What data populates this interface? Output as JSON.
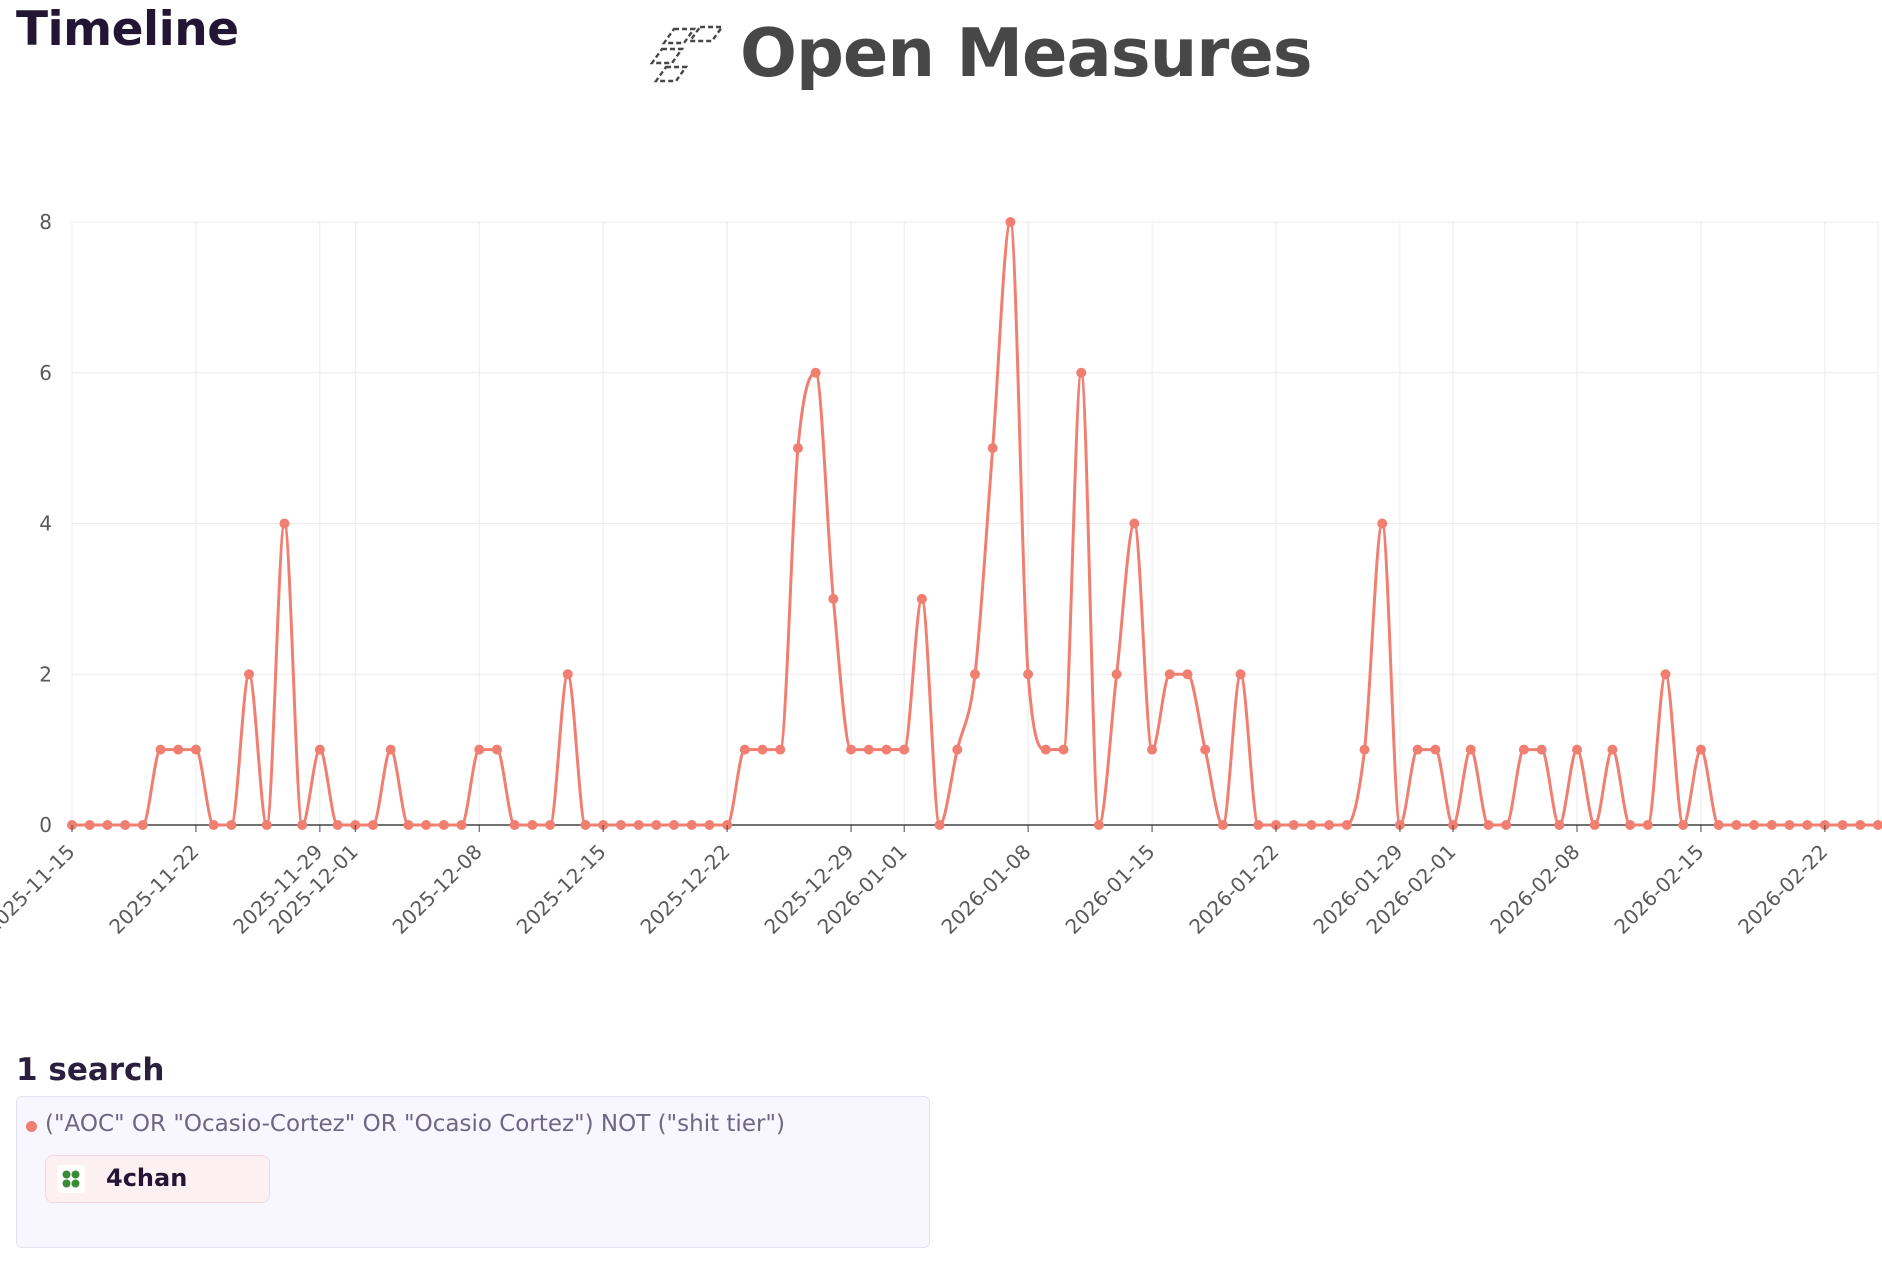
{
  "header": {
    "title": "Timeline",
    "brand_name": "Open Measures",
    "brand_icon": "open-measures-logo"
  },
  "chart_data": {
    "type": "line",
    "title": "",
    "xlabel": "",
    "ylabel": "",
    "x_start": "2025-11-15",
    "x_end": "2026-02-25",
    "x_ticks": [
      "2025-11-15",
      "2025-11-22",
      "2025-11-29",
      "2025-12-01",
      "2025-12-08",
      "2025-12-15",
      "2025-12-22",
      "2025-12-29",
      "2026-01-01",
      "2026-01-08",
      "2026-01-15",
      "2026-01-22",
      "2026-01-29",
      "2026-02-01",
      "2026-02-08",
      "2026-02-15",
      "2026-02-22"
    ],
    "y_ticks": [
      0,
      2,
      4,
      6,
      8
    ],
    "ylim": [
      0,
      8
    ],
    "grid": true,
    "legend": "none",
    "series": [
      {
        "color": "#f07f72",
        "points": [
          [
            "2025-11-15",
            0
          ],
          [
            "2025-11-16",
            0
          ],
          [
            "2025-11-17",
            0
          ],
          [
            "2025-11-18",
            0
          ],
          [
            "2025-11-19",
            0
          ],
          [
            "2025-11-20",
            1
          ],
          [
            "2025-11-21",
            1
          ],
          [
            "2025-11-22",
            1
          ],
          [
            "2025-11-23",
            0
          ],
          [
            "2025-11-24",
            0
          ],
          [
            "2025-11-25",
            2
          ],
          [
            "2025-11-26",
            0
          ],
          [
            "2025-11-27",
            4
          ],
          [
            "2025-11-28",
            0
          ],
          [
            "2025-11-29",
            1
          ],
          [
            "2025-11-30",
            0
          ],
          [
            "2025-12-01",
            0
          ],
          [
            "2025-12-02",
            0
          ],
          [
            "2025-12-03",
            1
          ],
          [
            "2025-12-04",
            0
          ],
          [
            "2025-12-05",
            0
          ],
          [
            "2025-12-06",
            0
          ],
          [
            "2025-12-07",
            0
          ],
          [
            "2025-12-08",
            1
          ],
          [
            "2025-12-09",
            1
          ],
          [
            "2025-12-10",
            0
          ],
          [
            "2025-12-11",
            0
          ],
          [
            "2025-12-12",
            0
          ],
          [
            "2025-12-13",
            2
          ],
          [
            "2025-12-14",
            0
          ],
          [
            "2025-12-15",
            0
          ],
          [
            "2025-12-16",
            0
          ],
          [
            "2025-12-17",
            0
          ],
          [
            "2025-12-18",
            0
          ],
          [
            "2025-12-19",
            0
          ],
          [
            "2025-12-20",
            0
          ],
          [
            "2025-12-21",
            0
          ],
          [
            "2025-12-22",
            0
          ],
          [
            "2025-12-23",
            1
          ],
          [
            "2025-12-24",
            1
          ],
          [
            "2025-12-25",
            1
          ],
          [
            "2025-12-26",
            5
          ],
          [
            "2025-12-27",
            6
          ],
          [
            "2025-12-28",
            3
          ],
          [
            "2025-12-29",
            1
          ],
          [
            "2025-12-30",
            1
          ],
          [
            "2025-12-31",
            1
          ],
          [
            "2026-01-01",
            1
          ],
          [
            "2026-01-02",
            3
          ],
          [
            "2026-01-03",
            0
          ],
          [
            "2026-01-04",
            1
          ],
          [
            "2026-01-05",
            2
          ],
          [
            "2026-01-06",
            5
          ],
          [
            "2026-01-07",
            8
          ],
          [
            "2026-01-08",
            2
          ],
          [
            "2026-01-09",
            1
          ],
          [
            "2026-01-10",
            1
          ],
          [
            "2026-01-11",
            6
          ],
          [
            "2026-01-12",
            0
          ],
          [
            "2026-01-13",
            2
          ],
          [
            "2026-01-14",
            4
          ],
          [
            "2026-01-15",
            1
          ],
          [
            "2026-01-16",
            2
          ],
          [
            "2026-01-17",
            2
          ],
          [
            "2026-01-18",
            1
          ],
          [
            "2026-01-19",
            0
          ],
          [
            "2026-01-20",
            2
          ],
          [
            "2026-01-21",
            0
          ],
          [
            "2026-01-22",
            0
          ],
          [
            "2026-01-23",
            0
          ],
          [
            "2026-01-24",
            0
          ],
          [
            "2026-01-25",
            0
          ],
          [
            "2026-01-26",
            0
          ],
          [
            "2026-01-27",
            1
          ],
          [
            "2026-01-28",
            4
          ],
          [
            "2026-01-29",
            0
          ],
          [
            "2026-01-30",
            1
          ],
          [
            "2026-01-31",
            1
          ],
          [
            "2026-02-01",
            0
          ],
          [
            "2026-02-02",
            1
          ],
          [
            "2026-02-03",
            0
          ],
          [
            "2026-02-04",
            0
          ],
          [
            "2026-02-05",
            1
          ],
          [
            "2026-02-06",
            1
          ],
          [
            "2026-02-07",
            0
          ],
          [
            "2026-02-08",
            1
          ],
          [
            "2026-02-09",
            0
          ],
          [
            "2026-02-10",
            1
          ],
          [
            "2026-02-11",
            0
          ],
          [
            "2026-02-12",
            0
          ],
          [
            "2026-02-13",
            2
          ],
          [
            "2026-02-14",
            0
          ],
          [
            "2026-02-15",
            1
          ],
          [
            "2026-02-16",
            0
          ],
          [
            "2026-02-17",
            0
          ],
          [
            "2026-02-18",
            0
          ],
          [
            "2026-02-19",
            0
          ],
          [
            "2026-02-20",
            0
          ],
          [
            "2026-02-21",
            0
          ],
          [
            "2026-02-22",
            0
          ],
          [
            "2026-02-23",
            0
          ],
          [
            "2026-02-24",
            0
          ],
          [
            "2026-02-25",
            0
          ]
        ]
      }
    ]
  },
  "searches": {
    "heading": "1 search",
    "items": [
      {
        "query": "(\"AOC\" OR \"Ocasio-Cortez\" OR \"Ocasio Cortez\") NOT (\"shit tier\")",
        "dot_color": "#f07f72",
        "platform": "4chan",
        "platform_icon": "four-leaf-clover-icon"
      }
    ]
  }
}
